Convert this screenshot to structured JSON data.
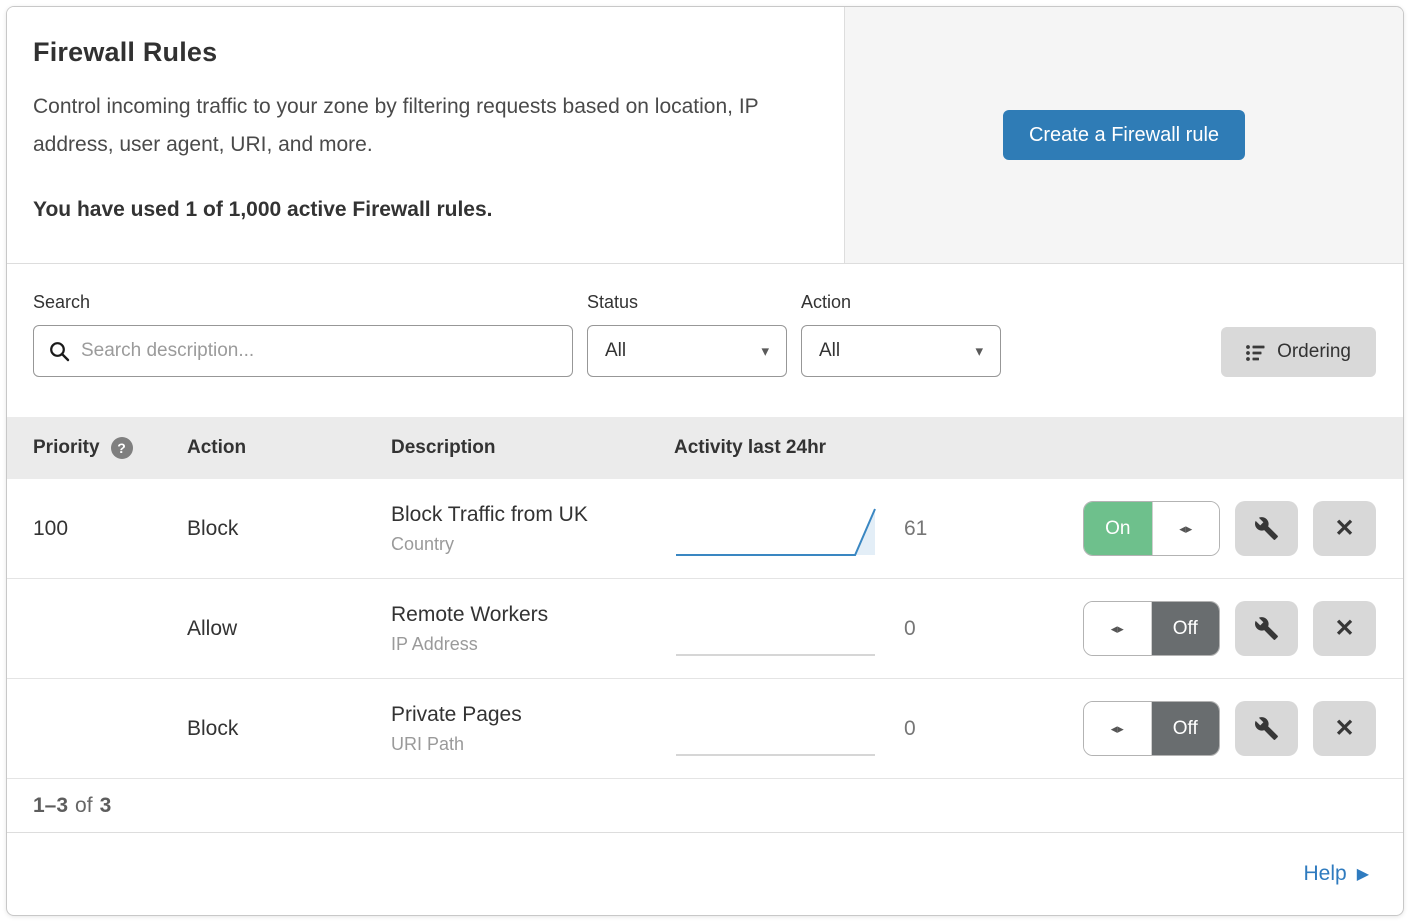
{
  "header": {
    "title": "Firewall Rules",
    "description": "Control incoming traffic to your zone by filtering requests based on location, IP address, user agent, URI, and more.",
    "usage": "You have used 1 of 1,000 active Firewall rules.",
    "create_button": "Create a Firewall rule"
  },
  "filters": {
    "search_label": "Search",
    "search_placeholder": "Search description...",
    "search_value": "",
    "status_label": "Status",
    "status_value": "All",
    "action_label": "Action",
    "action_value": "All",
    "ordering_button": "Ordering"
  },
  "table": {
    "columns": {
      "priority": "Priority",
      "action": "Action",
      "description": "Description",
      "activity": "Activity last 24hr"
    },
    "rows": [
      {
        "priority": "100",
        "action": "Block",
        "description": "Block Traffic from UK",
        "match_type": "Country",
        "activity_count": "61",
        "sparkline": [
          0,
          0,
          0,
          0,
          0,
          0,
          0,
          0,
          0,
          0,
          61
        ],
        "enabled": true,
        "toggle_label": "On"
      },
      {
        "priority": "",
        "action": "Allow",
        "description": "Remote Workers",
        "match_type": "IP Address",
        "activity_count": "0",
        "sparkline": [
          0,
          0,
          0,
          0,
          0,
          0,
          0,
          0,
          0,
          0,
          0
        ],
        "enabled": false,
        "toggle_label": "Off"
      },
      {
        "priority": "",
        "action": "Block",
        "description": "Private Pages",
        "match_type": "URI Path",
        "activity_count": "0",
        "sparkline": [
          0,
          0,
          0,
          0,
          0,
          0,
          0,
          0,
          0,
          0,
          0
        ],
        "enabled": false,
        "toggle_label": "Off"
      }
    ]
  },
  "pagination": {
    "range": "1–3",
    "of_text": "of",
    "total": "3"
  },
  "footer": {
    "help_label": "Help"
  },
  "colors": {
    "accent_blue": "#2f7cb6",
    "link_blue": "#2f7bbf",
    "toggle_on_green": "#6ec08c",
    "toggle_off_gray": "#696d6f",
    "sparkline_blue": "#3a87c2",
    "sparkline_fill": "#e3eef7",
    "sparkline_zero_gray": "#c9c9c9"
  }
}
